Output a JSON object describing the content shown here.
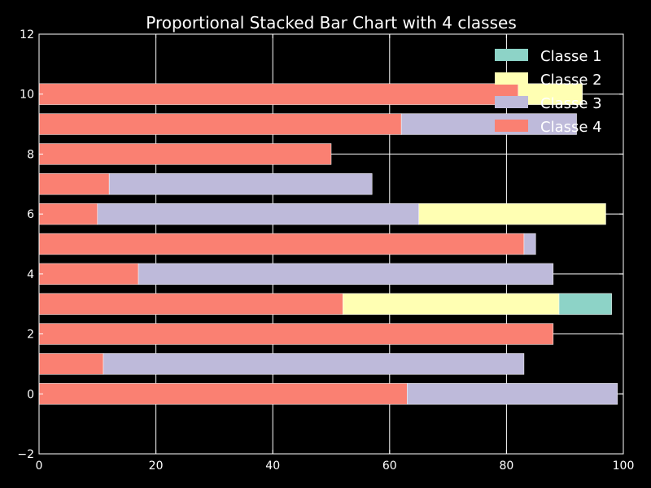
{
  "chart_data": {
    "type": "bar",
    "orientation": "horizontal",
    "stacked": true,
    "title": "Proportional Stacked Bar Chart with 4 classes",
    "xlabel": "",
    "ylabel": "",
    "xlim": [
      0,
      100
    ],
    "ylim": [
      -2,
      12
    ],
    "x_ticks": [
      "0",
      "20",
      "40",
      "60",
      "80",
      "100"
    ],
    "y_ticks": [
      "−2",
      "0",
      "2",
      "4",
      "6",
      "8",
      "10",
      "12"
    ],
    "grid": true,
    "legend_position": "top-right",
    "categories": [
      0,
      1,
      2,
      3,
      4,
      5,
      6,
      7,
      8,
      9,
      10
    ],
    "series": [
      {
        "name": "Classe 1",
        "color": "#8dd3c7",
        "values": [
          0,
          0,
          0,
          9,
          0,
          0,
          0,
          0,
          0,
          0,
          0
        ]
      },
      {
        "name": "Classe 2",
        "color": "#ffffb3",
        "values": [
          0,
          0,
          0,
          37,
          0,
          0,
          32,
          0,
          0,
          0,
          11
        ]
      },
      {
        "name": "Classe 3",
        "color": "#bebada",
        "values": [
          36,
          72,
          0,
          0,
          71,
          2,
          55,
          45,
          0,
          30,
          0
        ]
      },
      {
        "name": "Classe 4",
        "color": "#fa8072",
        "values": [
          63,
          11,
          88,
          52,
          17,
          83,
          10,
          12,
          50,
          62,
          82
        ]
      }
    ],
    "colors": {
      "background": "#000000",
      "grid": "#ffffff",
      "text": "#ffffff"
    }
  }
}
